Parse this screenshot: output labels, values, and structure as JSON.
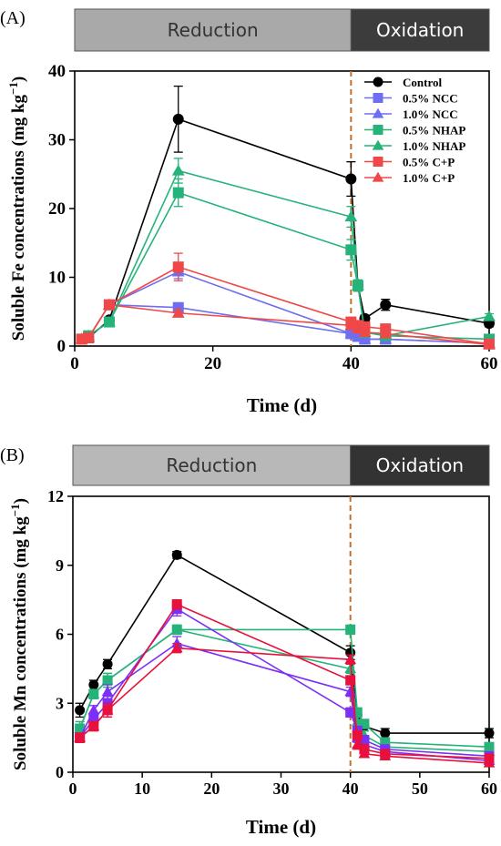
{
  "chart_data": [
    {
      "type": "line",
      "panel_label": "(A)",
      "phases": [
        {
          "label": "Reduction",
          "range": [
            0,
            40
          ],
          "color": "#a9a9a9"
        },
        {
          "label": "Oxidation",
          "range": [
            40,
            60
          ],
          "color": "#3c3c3c"
        }
      ],
      "xlabel": "Time (d)",
      "ylabel": "Soluble Fe concentrations (mg kg",
      "ylabel_unit_exp": "−1",
      "xlim": [
        0,
        60
      ],
      "ylim": [
        0,
        40
      ],
      "xticks": [
        0,
        20,
        40,
        60
      ],
      "yticks": [
        0,
        10,
        20,
        30,
        40
      ],
      "vline_x": 40,
      "legend_position": "top-right",
      "x": [
        1,
        2,
        5,
        15,
        40,
        41,
        42,
        45,
        60
      ],
      "series": [
        {
          "name": "Control",
          "color": "#000000",
          "marker": "circle",
          "values": [
            1.0,
            1.2,
            3.8,
            33.0,
            24.3,
            8.8,
            4.0,
            6.0,
            3.3
          ],
          "errors": [
            0.2,
            0.2,
            0.4,
            4.8,
            2.5,
            0.8,
            0.5,
            0.8,
            0.5
          ]
        },
        {
          "name": "0.5% NCC",
          "color": "#6e6ef0",
          "marker": "square",
          "values": [
            1.0,
            1.2,
            6.0,
            5.6,
            1.8,
            1.4,
            1.0,
            1.0,
            0.4
          ],
          "errors": [
            0.2,
            0.2,
            0.6,
            0.5,
            0.3,
            0.2,
            0.2,
            0.2,
            0.1
          ]
        },
        {
          "name": "1.0% NCC",
          "color": "#6e6ef0",
          "marker": "triangle",
          "values": [
            1.0,
            1.2,
            6.0,
            10.8,
            1.8,
            1.4,
            1.0,
            1.0,
            0.4
          ],
          "errors": [
            0.2,
            0.2,
            0.6,
            1.0,
            0.3,
            0.2,
            0.2,
            0.2,
            0.1
          ]
        },
        {
          "name": "0.5% NHAP",
          "color": "#26b37a",
          "marker": "square",
          "values": [
            1.0,
            1.5,
            3.5,
            22.3,
            14.0,
            8.8,
            2.0,
            1.5,
            1.0
          ],
          "errors": [
            0.2,
            0.2,
            0.4,
            2.0,
            1.5,
            0.8,
            0.3,
            0.3,
            0.2
          ]
        },
        {
          "name": "1.0% NHAP",
          "color": "#26b37a",
          "marker": "triangle",
          "values": [
            1.0,
            1.5,
            3.5,
            25.5,
            18.8,
            8.8,
            2.0,
            1.5,
            4.3
          ],
          "errors": [
            0.2,
            0.2,
            0.4,
            1.8,
            1.5,
            0.8,
            0.3,
            0.3,
            0.4
          ]
        },
        {
          "name": "0.5% C+P",
          "color": "#f04848",
          "marker": "square",
          "values": [
            1.0,
            1.2,
            6.0,
            11.5,
            3.5,
            3.0,
            2.8,
            2.5,
            0.3
          ],
          "errors": [
            0.2,
            0.2,
            0.5,
            2.0,
            0.5,
            0.4,
            0.3,
            0.3,
            0.1
          ]
        },
        {
          "name": "1.0% C+P",
          "color": "#f04848",
          "marker": "triangle",
          "values": [
            1.0,
            1.2,
            6.0,
            4.8,
            3.0,
            2.5,
            2.0,
            1.8,
            0.2
          ],
          "errors": [
            0.2,
            0.2,
            0.5,
            0.5,
            0.4,
            0.3,
            0.3,
            0.3,
            0.1
          ]
        }
      ]
    },
    {
      "type": "line",
      "panel_label": "(B)",
      "phases": [
        {
          "label": "Reduction",
          "range": [
            0,
            40
          ],
          "color": "#b8b8b8"
        },
        {
          "label": "Oxidation",
          "range": [
            40,
            60
          ],
          "color": "#333333"
        }
      ],
      "xlabel": "Time (d)",
      "ylabel": "Soluble Mn concentrations (mg kg",
      "ylabel_unit_exp": "−1",
      "xlim": [
        0,
        60
      ],
      "ylim": [
        0,
        12
      ],
      "xticks": [
        0,
        10,
        20,
        30,
        40,
        50,
        60
      ],
      "yticks": [
        0,
        3,
        6,
        9,
        12
      ],
      "vline_x": 40,
      "x": [
        1,
        3,
        5,
        15,
        40,
        41,
        42,
        45,
        60
      ],
      "series": [
        {
          "color": "#000000",
          "marker": "circle",
          "values": [
            2.7,
            3.8,
            4.7,
            9.45,
            5.2,
            2.5,
            2.0,
            1.7,
            1.7
          ],
          "errors": [
            0.3,
            0.2,
            0.2,
            0.15,
            0.3,
            0.2,
            0.2,
            0.2,
            0.2
          ]
        },
        {
          "color": "#26b37a",
          "marker": "square",
          "values": [
            1.9,
            3.4,
            4.0,
            6.2,
            6.2,
            2.6,
            2.1,
            1.3,
            1.1
          ],
          "errors": [
            0.3,
            0.2,
            0.3,
            0.2,
            0.2,
            0.2,
            0.2,
            0.2,
            0.1
          ]
        },
        {
          "color": "#26b37a",
          "marker": "triangle",
          "values": [
            1.9,
            3.4,
            4.0,
            6.2,
            4.5,
            2.2,
            1.6,
            1.1,
            0.9
          ],
          "errors": [
            0.3,
            0.2,
            0.3,
            0.2,
            0.2,
            0.2,
            0.2,
            0.1,
            0.1
          ]
        },
        {
          "color": "#7b2ff7",
          "marker": "square",
          "values": [
            1.5,
            2.3,
            3.0,
            7.1,
            2.6,
            1.8,
            1.4,
            1.0,
            0.7
          ],
          "errors": [
            0.2,
            0.2,
            0.3,
            0.3,
            0.2,
            0.2,
            0.2,
            0.1,
            0.1
          ]
        },
        {
          "color": "#7b2ff7",
          "marker": "triangle",
          "values": [
            1.5,
            2.7,
            3.5,
            5.6,
            3.5,
            1.5,
            1.2,
            0.9,
            0.5
          ],
          "errors": [
            0.2,
            0.2,
            0.3,
            0.3,
            0.2,
            0.2,
            0.2,
            0.1,
            0.1
          ]
        },
        {
          "color": "#e8103c",
          "marker": "square",
          "values": [
            1.5,
            2.0,
            2.7,
            7.3,
            4.0,
            1.6,
            1.0,
            0.8,
            0.6
          ],
          "errors": [
            0.2,
            0.2,
            0.3,
            0.2,
            0.2,
            0.2,
            0.2,
            0.1,
            0.1
          ]
        },
        {
          "color": "#e8103c",
          "marker": "triangle",
          "values": [
            1.5,
            2.0,
            2.7,
            5.4,
            4.9,
            1.2,
            0.8,
            0.7,
            0.4
          ],
          "errors": [
            0.2,
            0.2,
            0.3,
            0.2,
            0.2,
            0.2,
            0.1,
            0.1,
            0.1
          ]
        }
      ]
    }
  ]
}
